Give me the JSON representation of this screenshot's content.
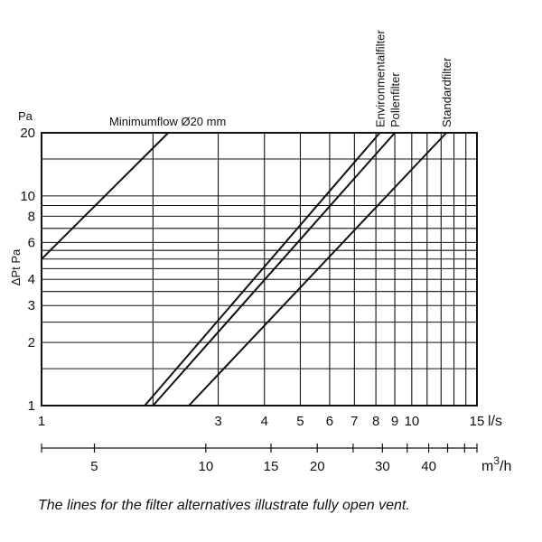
{
  "chart_data": {
    "type": "line",
    "x_scale": "log",
    "y_scale": "log",
    "xlim": [
      1,
      15
    ],
    "ylim": [
      1,
      20
    ],
    "x_unit": "l/s",
    "x_ticks": [
      1,
      3,
      4,
      5,
      6,
      7,
      8,
      9,
      10,
      15
    ],
    "x_grid": [
      1,
      2,
      3,
      4,
      5,
      6,
      7,
      8,
      9,
      10,
      11,
      12,
      13,
      14,
      15
    ],
    "y_unit_top": "Pa",
    "ylabel": "ΔPt Pa",
    "y_ticks": [
      1,
      2,
      3,
      4,
      6,
      8,
      10,
      20
    ],
    "y_grid": [
      1,
      1.5,
      2,
      2.5,
      3,
      3.5,
      4,
      4.5,
      5,
      5.5,
      6,
      7,
      8,
      9,
      10,
      15,
      20
    ],
    "secondary_x_unit": "m3/h",
    "secondary_x_ticks": [
      5,
      10,
      15,
      20,
      30,
      40
    ],
    "secondary_x_minor": [
      3.6,
      5,
      10,
      15,
      20,
      25,
      30,
      35,
      40,
      45,
      50,
      54
    ],
    "grid": true,
    "series": [
      {
        "name": "Minimumflow Ø20 mm",
        "x": [
          1,
          2.2
        ],
        "y": [
          5,
          20
        ]
      },
      {
        "name": "Environmentalfilter",
        "x": [
          1.9,
          8.2
        ],
        "y": [
          1,
          20
        ]
      },
      {
        "name": "Pollenfilter",
        "x": [
          2.0,
          9.0
        ],
        "y": [
          1,
          20
        ]
      },
      {
        "name": "Standardfilter",
        "x": [
          2.5,
          12.4
        ],
        "y": [
          1,
          20
        ]
      }
    ],
    "caption": "The lines for the filter alternatives illustrate fully open vent."
  }
}
